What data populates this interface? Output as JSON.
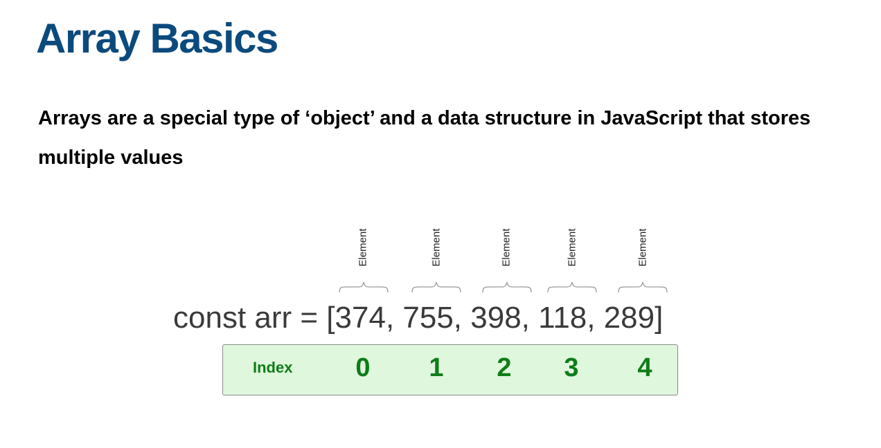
{
  "header": {
    "title": "Array Basics"
  },
  "description": "Arrays are a special type of ‘object’ and a data structure in JavaScript that stores multiple values",
  "diagram": {
    "element_label": "Element",
    "code_line": "const arr = [374, 755, 398, 118, 289]",
    "index_label": "Index",
    "indices": [
      "0",
      "1",
      "2",
      "3",
      "4"
    ]
  },
  "colors": {
    "title": "#0b4a7d",
    "index_text": "#0e7d18",
    "index_box_fill": "#dff7dc",
    "index_box_border": "#8a8a8a",
    "brace": "#9a9a9a"
  }
}
